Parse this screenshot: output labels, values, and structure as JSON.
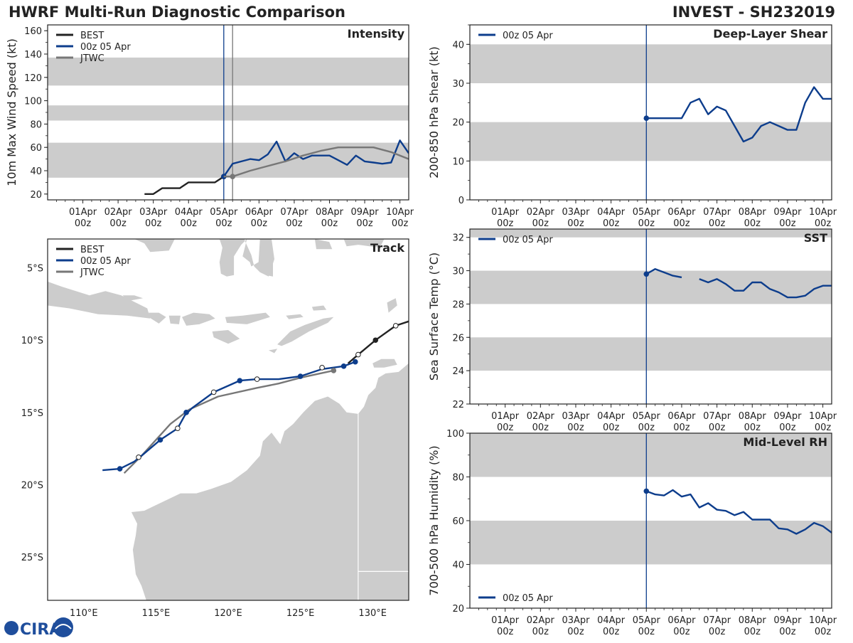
{
  "header": {
    "title_left": "HWRF Multi-Run Diagnostic Comparison",
    "title_right": "INVEST - SH232019"
  },
  "logo": {
    "text": "CIRA"
  },
  "colors": {
    "best": "#222222",
    "run": "#0d3d8c",
    "jtwc": "#777777",
    "band": "#cccccc",
    "land": "#cccccc",
    "axis": "#222222"
  },
  "time_ticks": [
    {
      "top": "01Apr",
      "bot": "00z",
      "day": 1
    },
    {
      "top": "02Apr",
      "bot": "00z",
      "day": 2
    },
    {
      "top": "03Apr",
      "bot": "00z",
      "day": 3
    },
    {
      "top": "04Apr",
      "bot": "00z",
      "day": 4
    },
    {
      "top": "05Apr",
      "bot": "00z",
      "day": 5
    },
    {
      "top": "06Apr",
      "bot": "00z",
      "day": 6
    },
    {
      "top": "07Apr",
      "bot": "00z",
      "day": 7
    },
    {
      "top": "08Apr",
      "bot": "00z",
      "day": 8
    },
    {
      "top": "09Apr",
      "bot": "00z",
      "day": 9
    },
    {
      "top": "10Apr",
      "bot": "00z",
      "day": 10
    }
  ],
  "chart_data": [
    {
      "id": "intensity",
      "type": "line",
      "panel_title": "Intensity",
      "ylabel": "10m Max Wind Speed (kt)",
      "xlim": [
        0.0,
        10.25
      ],
      "ylim": [
        15,
        165
      ],
      "yticks": [
        20,
        40,
        60,
        80,
        100,
        120,
        140,
        160
      ],
      "bands": [
        [
          34,
          64
        ],
        [
          83,
          96
        ],
        [
          113,
          137
        ]
      ],
      "vlines": [
        {
          "x": 5.0,
          "color": "run"
        },
        {
          "x": 5.25,
          "color": "jtwc"
        }
      ],
      "legend": [
        {
          "label": "BEST",
          "color": "best"
        },
        {
          "label": "00z 05 Apr",
          "color": "run"
        },
        {
          "label": "JTWC",
          "color": "jtwc"
        }
      ],
      "series": [
        {
          "name": "BEST",
          "color": "best",
          "x": [
            2.75,
            3.0,
            3.25,
            3.5,
            3.75,
            4.0,
            4.25,
            4.5,
            4.75,
            5.0
          ],
          "y": [
            20,
            20,
            25,
            25,
            25,
            30,
            30,
            30,
            30,
            35
          ],
          "markers": [
            [
              5.0,
              35
            ]
          ]
        },
        {
          "name": "00z 05 Apr",
          "color": "run",
          "x": [
            5.0,
            5.25,
            5.5,
            5.75,
            6.0,
            6.25,
            6.5,
            6.75,
            7.0,
            7.25,
            7.5,
            7.75,
            8.0,
            8.25,
            8.5,
            8.75,
            9.0,
            9.25,
            9.5,
            9.75,
            10.0,
            10.25
          ],
          "y": [
            35,
            46,
            48,
            50,
            49,
            54,
            65,
            48,
            55,
            50,
            53,
            53,
            53,
            49,
            45,
            53,
            48,
            47,
            46,
            47,
            66,
            55
          ],
          "markers": [
            [
              5.0,
              35
            ]
          ]
        },
        {
          "name": "JTWC",
          "color": "jtwc",
          "x": [
            5.0,
            5.25,
            5.75,
            6.25,
            6.75,
            7.25,
            7.75,
            8.25,
            8.75,
            9.25,
            9.75,
            10.25
          ],
          "y": [
            35,
            35,
            40,
            44,
            48,
            53,
            57,
            60,
            60,
            60,
            56,
            50
          ],
          "markers": [
            [
              5.25,
              35
            ]
          ]
        }
      ]
    },
    {
      "id": "shear",
      "type": "line",
      "panel_title": "Deep-Layer Shear",
      "ylabel": "200-850 hPa Shear (kt)",
      "xlim": [
        0.0,
        10.25
      ],
      "ylim": [
        0,
        45
      ],
      "yticks": [
        0,
        10,
        20,
        30,
        40
      ],
      "bands": [
        [
          10,
          20
        ],
        [
          30,
          40
        ]
      ],
      "vlines": [
        {
          "x": 5.0,
          "color": "run"
        }
      ],
      "legend": [
        {
          "label": "00z 05 Apr",
          "color": "run"
        }
      ],
      "series": [
        {
          "name": "00z 05 Apr",
          "color": "run",
          "x": [
            5.0,
            5.25,
            5.5,
            5.75,
            6.0,
            6.25,
            6.5,
            6.75,
            7.0,
            7.25,
            7.5,
            7.75,
            8.0,
            8.25,
            8.5,
            8.75,
            9.0,
            9.25,
            9.5,
            9.75,
            10.0,
            10.25
          ],
          "y": [
            21,
            21,
            21,
            21,
            21,
            25,
            26,
            22,
            24,
            23,
            19,
            15,
            16,
            19,
            20,
            19,
            18,
            18,
            25,
            29,
            26,
            26
          ],
          "markers": [
            [
              5.0,
              21
            ]
          ]
        }
      ]
    },
    {
      "id": "sst",
      "type": "line",
      "panel_title": "SST",
      "ylabel": "Sea Surface Temp (°C)",
      "xlim": [
        0.0,
        10.25
      ],
      "ylim": [
        22,
        32.5
      ],
      "yticks": [
        22,
        24,
        26,
        28,
        30,
        32
      ],
      "bands": [
        [
          24,
          26
        ],
        [
          28,
          30
        ],
        [
          32,
          33
        ]
      ],
      "vlines": [
        {
          "x": 5.0,
          "color": "run"
        }
      ],
      "legend": [
        {
          "label": "00z 05 Apr",
          "color": "run"
        }
      ],
      "series": [
        {
          "name": "00z 05 Apr",
          "color": "run",
          "x": [
            5.0,
            5.25,
            5.5,
            5.75,
            6.0
          ],
          "y": [
            29.8,
            30.1,
            29.9,
            29.7,
            29.6
          ],
          "markers": [
            [
              5.0,
              29.8
            ]
          ]
        },
        {
          "name": "00z 05 Apr (cont.)",
          "color": "run",
          "x": [
            6.5,
            6.75,
            7.0,
            7.25,
            7.5,
            7.75,
            8.0,
            8.25,
            8.5,
            8.75,
            9.0,
            9.25,
            9.5,
            9.75,
            10.0,
            10.25
          ],
          "y": [
            29.5,
            29.3,
            29.5,
            29.2,
            28.8,
            28.8,
            29.3,
            29.3,
            28.9,
            28.7,
            28.4,
            28.4,
            28.5,
            28.9,
            29.1,
            29.1
          ],
          "markers": []
        }
      ]
    },
    {
      "id": "rh",
      "type": "line",
      "panel_title": "Mid-Level RH",
      "ylabel": "700-500 hPa Humidity (%)",
      "xlim": [
        0.0,
        10.25
      ],
      "ylim": [
        20,
        100
      ],
      "yticks": [
        20,
        40,
        60,
        80,
        100
      ],
      "bands": [
        [
          40,
          60
        ],
        [
          80,
          100
        ]
      ],
      "vlines": [
        {
          "x": 5.0,
          "color": "run"
        }
      ],
      "legend": [
        {
          "label": "00z 05 Apr",
          "color": "run"
        }
      ],
      "series": [
        {
          "name": "00z 05 Apr",
          "color": "run",
          "x": [
            5.0,
            5.25,
            5.5,
            5.75,
            6.0,
            6.25,
            6.5,
            6.75,
            7.0,
            7.25,
            7.5,
            7.75,
            8.0,
            8.25,
            8.5,
            8.75,
            9.0,
            9.25,
            9.5,
            9.75,
            10.0,
            10.25
          ],
          "y": [
            73.5,
            72,
            71.5,
            74,
            71,
            72,
            66,
            68,
            65,
            64.5,
            62.5,
            64,
            60.5,
            60.5,
            60.5,
            56.5,
            56,
            54,
            56,
            59,
            57.5,
            54.5
          ],
          "markers": [
            [
              5.0,
              73.5
            ]
          ]
        }
      ]
    },
    {
      "id": "track",
      "type": "scatter",
      "panel_title": "Track",
      "xlim": [
        107.5,
        132.5
      ],
      "ylim": [
        -28,
        -3
      ],
      "xticks": [
        {
          "v": 110,
          "label": "110°E"
        },
        {
          "v": 115,
          "label": "115°E"
        },
        {
          "v": 120,
          "label": "120°E"
        },
        {
          "v": 125,
          "label": "125°E"
        },
        {
          "v": 130,
          "label": "130°E"
        }
      ],
      "yticks": [
        {
          "v": -5,
          "label": "5°S"
        },
        {
          "v": -10,
          "label": "10°S"
        },
        {
          "v": -15,
          "label": "15°S"
        },
        {
          "v": -20,
          "label": "20°S"
        },
        {
          "v": -25,
          "label": "25°S"
        }
      ],
      "legend": [
        {
          "label": "BEST",
          "color": "best"
        },
        {
          "label": "00z 05 Apr",
          "color": "run"
        },
        {
          "label": "JTWC",
          "color": "jtwc"
        }
      ],
      "series": [
        {
          "name": "BEST",
          "color": "best",
          "lon": [
            132.5,
            131.6,
            130.2,
            129.0,
            128.3
          ],
          "lat": [
            -8.7,
            -9.0,
            -10.0,
            -11.0,
            -11.6
          ],
          "points": [
            {
              "lon": 131.6,
              "lat": -9.0,
              "fill": "open"
            },
            {
              "lon": 130.2,
              "lat": -10.0,
              "fill": "solid"
            },
            {
              "lon": 129.0,
              "lat": -11.0,
              "fill": "open"
            }
          ]
        },
        {
          "name": "00z 05 Apr",
          "color": "run",
          "lon": [
            128.8,
            128.0,
            126.5,
            125.0,
            123.5,
            122.0,
            120.8,
            119.0,
            117.5,
            117.0,
            116.5,
            115.3,
            114.0,
            113.5,
            112.5,
            111.3
          ],
          "lat": [
            -11.5,
            -11.8,
            -12.0,
            -12.5,
            -12.7,
            -12.7,
            -12.8,
            -13.6,
            -14.7,
            -15.2,
            -16.1,
            -16.9,
            -18.0,
            -18.4,
            -18.9,
            -19.0
          ],
          "points": [
            {
              "lon": 128.8,
              "lat": -11.5,
              "fill": "solid"
            },
            {
              "lon": 128.0,
              "lat": -11.8,
              "fill": "solid"
            },
            {
              "lon": 126.5,
              "lat": -11.9,
              "fill": "open"
            },
            {
              "lon": 125.0,
              "lat": -12.5,
              "fill": "solid"
            },
            {
              "lon": 122.0,
              "lat": -12.7,
              "fill": "open"
            },
            {
              "lon": 120.8,
              "lat": -12.8,
              "fill": "solid"
            },
            {
              "lon": 119.0,
              "lat": -13.6,
              "fill": "open"
            },
            {
              "lon": 117.1,
              "lat": -15.0,
              "fill": "solid"
            },
            {
              "lon": 116.5,
              "lat": -16.1,
              "fill": "open"
            },
            {
              "lon": 115.3,
              "lat": -16.9,
              "fill": "solid"
            },
            {
              "lon": 113.8,
              "lat": -18.1,
              "fill": "open"
            },
            {
              "lon": 112.5,
              "lat": -18.9,
              "fill": "solid"
            }
          ]
        },
        {
          "name": "JTWC",
          "color": "jtwc",
          "lon": [
            127.3,
            125.0,
            123.5,
            122.0,
            119.3,
            117.3,
            116.0,
            115.0,
            114.0,
            112.8
          ],
          "lat": [
            -12.1,
            -12.6,
            -13.0,
            -13.3,
            -13.9,
            -14.8,
            -15.8,
            -16.9,
            -18.0,
            -19.2
          ],
          "points": [
            {
              "lon": 127.3,
              "lat": -12.1,
              "fill": "solid"
            }
          ]
        }
      ]
    }
  ]
}
